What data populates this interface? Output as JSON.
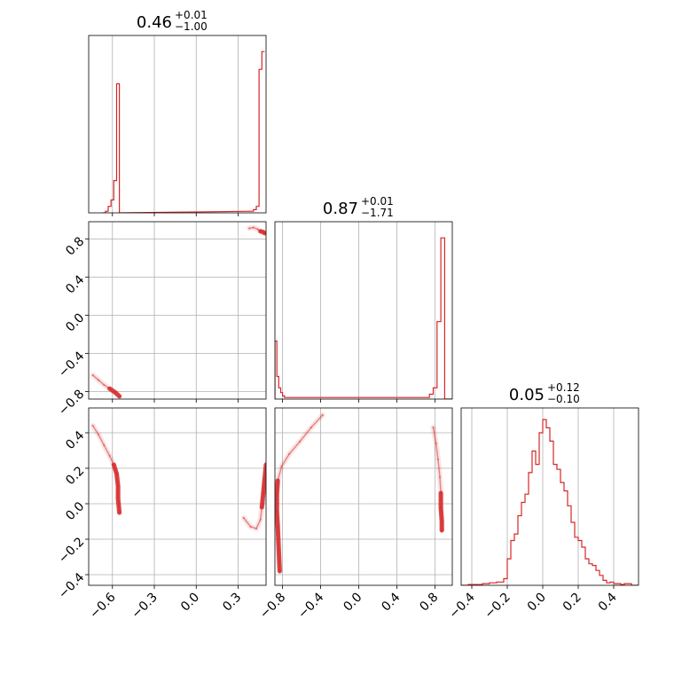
{
  "chart_data": {
    "type": "corner",
    "color": "#d62728",
    "parameters": [
      {
        "title": {
          "value": "0.46",
          "plus": "+0.01",
          "minus": "−1.00"
        },
        "range": [
          -0.77,
          0.5
        ]
      },
      {
        "title": {
          "value": "0.87",
          "plus": "+0.01",
          "minus": "−1.71"
        },
        "range": [
          -0.88,
          0.98
        ]
      },
      {
        "title": {
          "value": "0.05",
          "plus": "+0.12",
          "minus": "−0.10"
        },
        "range": [
          -0.46,
          0.54
        ]
      }
    ],
    "ticks": {
      "x0": [
        {
          "v": -0.6,
          "label": "−0.6"
        },
        {
          "v": -0.3,
          "label": "−0.3"
        },
        {
          "v": 0.0,
          "label": "0.0"
        },
        {
          "v": 0.3,
          "label": "0.3"
        }
      ],
      "x1": [
        {
          "v": -0.8,
          "label": "−0.8"
        },
        {
          "v": -0.4,
          "label": "−0.4"
        },
        {
          "v": 0.0,
          "label": "0.0"
        },
        {
          "v": 0.4,
          "label": "0.4"
        },
        {
          "v": 0.8,
          "label": "0.8"
        }
      ],
      "x2": [
        {
          "v": -0.4,
          "label": "−0.4"
        },
        {
          "v": -0.2,
          "label": "−0.2"
        },
        {
          "v": 0.0,
          "label": "0.0"
        },
        {
          "v": 0.2,
          "label": "0.2"
        },
        {
          "v": 0.4,
          "label": "0.4"
        }
      ],
      "y1": [
        {
          "v": 0.8,
          "label": "0.8"
        },
        {
          "v": 0.4,
          "label": "0.4"
        },
        {
          "v": 0.0,
          "label": "0.0"
        },
        {
          "v": -0.4,
          "label": "−0.4"
        },
        {
          "v": -0.8,
          "label": "−0.8"
        }
      ],
      "y2": [
        {
          "v": 0.4,
          "label": "0.4"
        },
        {
          "v": 0.2,
          "label": "0.2"
        },
        {
          "v": 0.0,
          "label": "0.0"
        },
        {
          "v": -0.2,
          "label": "−0.2"
        },
        {
          "v": -0.4,
          "label": "−0.4"
        }
      ]
    },
    "histograms": [
      {
        "param": 0,
        "bins": [
          [
            -0.67,
            -0.65,
            0
          ],
          [
            -0.65,
            -0.63,
            0.01
          ],
          [
            -0.63,
            -0.61,
            0.04
          ],
          [
            -0.61,
            -0.59,
            0.08
          ],
          [
            -0.59,
            -0.57,
            0.2
          ],
          [
            -0.57,
            -0.55,
            0.8
          ],
          [
            -0.55,
            -0.53,
            0
          ],
          [
            0.39,
            0.41,
            0.01
          ],
          [
            0.41,
            0.43,
            0.02
          ],
          [
            0.43,
            0.45,
            0.04
          ],
          [
            0.45,
            0.47,
            0.89
          ],
          [
            0.47,
            0.49,
            1.0
          ]
        ],
        "ymax": 1.1
      },
      {
        "param": 1,
        "bins": [
          [
            -0.88,
            -0.86,
            0.36
          ],
          [
            -0.86,
            -0.84,
            0.14
          ],
          [
            -0.84,
            -0.82,
            0.07
          ],
          [
            -0.82,
            -0.8,
            0.04
          ],
          [
            -0.8,
            -0.78,
            0.02
          ],
          [
            -0.78,
            -0.76,
            0.01
          ],
          [
            -0.76,
            -0.66,
            0.01
          ],
          [
            0.7,
            0.74,
            0.01
          ],
          [
            0.74,
            0.78,
            0.03
          ],
          [
            0.78,
            0.82,
            0.07
          ],
          [
            0.82,
            0.86,
            0.48
          ],
          [
            0.86,
            0.9,
            1.0
          ],
          [
            0.9,
            0.98,
            0.0
          ]
        ],
        "ymax": 1.1
      },
      {
        "param": 2,
        "bins": [
          [
            -0.46,
            -0.42,
            0.0
          ],
          [
            -0.42,
            -0.38,
            0.005
          ],
          [
            -0.38,
            -0.34,
            0.005
          ],
          [
            -0.34,
            -0.3,
            0.01
          ],
          [
            -0.3,
            -0.26,
            0.015
          ],
          [
            -0.26,
            -0.22,
            0.02
          ],
          [
            -0.22,
            -0.2,
            0.04
          ],
          [
            -0.2,
            -0.18,
            0.16
          ],
          [
            -0.18,
            -0.16,
            0.27
          ],
          [
            -0.16,
            -0.14,
            0.31
          ],
          [
            -0.14,
            -0.12,
            0.42
          ],
          [
            -0.12,
            -0.1,
            0.5
          ],
          [
            -0.1,
            -0.08,
            0.55
          ],
          [
            -0.08,
            -0.06,
            0.68
          ],
          [
            -0.06,
            -0.04,
            0.81
          ],
          [
            -0.04,
            -0.02,
            0.73
          ],
          [
            -0.02,
            0.0,
            0.92
          ],
          [
            0.0,
            0.02,
            1.0
          ],
          [
            0.02,
            0.04,
            0.95
          ],
          [
            0.04,
            0.06,
            0.87
          ],
          [
            0.06,
            0.08,
            0.73
          ],
          [
            0.08,
            0.1,
            0.7
          ],
          [
            0.1,
            0.12,
            0.62
          ],
          [
            0.12,
            0.14,
            0.57
          ],
          [
            0.14,
            0.16,
            0.48
          ],
          [
            0.16,
            0.18,
            0.38
          ],
          [
            0.18,
            0.2,
            0.29
          ],
          [
            0.2,
            0.22,
            0.27
          ],
          [
            0.22,
            0.24,
            0.23
          ],
          [
            0.24,
            0.26,
            0.16
          ],
          [
            0.26,
            0.28,
            0.13
          ],
          [
            0.28,
            0.3,
            0.12
          ],
          [
            0.3,
            0.32,
            0.09
          ],
          [
            0.32,
            0.34,
            0.06
          ],
          [
            0.34,
            0.36,
            0.03
          ],
          [
            0.36,
            0.38,
            0.015
          ],
          [
            0.38,
            0.4,
            0.02
          ],
          [
            0.4,
            0.42,
            0.01
          ],
          [
            0.42,
            0.44,
            0.01
          ],
          [
            0.44,
            0.46,
            0.005
          ],
          [
            0.46,
            0.5,
            0.01
          ],
          [
            0.5,
            0.54,
            0.0
          ]
        ],
        "ymax": 1.07
      }
    ],
    "scatter_panels": [
      {
        "xparam": 0,
        "yparam": 1,
        "clusters": [
          {
            "name": "upper-right",
            "points": [
              [
                0.38,
                0.91
              ],
              [
                0.41,
                0.92
              ],
              [
                0.44,
                0.9
              ],
              [
                0.46,
                0.88
              ],
              [
                0.48,
                0.87
              ],
              [
                0.49,
                0.86
              ]
            ]
          },
          {
            "name": "lower-left",
            "points": [
              [
                -0.74,
                -0.63
              ],
              [
                -0.7,
                -0.68
              ],
              [
                -0.66,
                -0.73
              ],
              [
                -0.62,
                -0.77
              ],
              [
                -0.58,
                -0.81
              ],
              [
                -0.55,
                -0.85
              ]
            ]
          }
        ]
      },
      {
        "xparam": 0,
        "yparam": 2,
        "clusters": [
          {
            "name": "left",
            "points": [
              [
                -0.74,
                0.44
              ],
              [
                -0.7,
                0.39
              ],
              [
                -0.66,
                0.33
              ],
              [
                -0.62,
                0.27
              ],
              [
                -0.59,
                0.22
              ],
              [
                -0.57,
                0.17
              ],
              [
                -0.56,
                0.1
              ],
              [
                -0.56,
                0.03
              ],
              [
                -0.55,
                -0.05
              ]
            ]
          },
          {
            "name": "right",
            "points": [
              [
                0.34,
                -0.08
              ],
              [
                0.39,
                -0.13
              ],
              [
                0.43,
                -0.14
              ],
              [
                0.46,
                -0.09
              ],
              [
                0.47,
                -0.02
              ],
              [
                0.48,
                0.06
              ],
              [
                0.49,
                0.14
              ],
              [
                0.5,
                0.22
              ]
            ]
          }
        ]
      },
      {
        "xparam": 1,
        "yparam": 2,
        "clusters": [
          {
            "name": "left",
            "points": [
              [
                -0.38,
                0.5
              ],
              [
                -0.5,
                0.43
              ],
              [
                -0.62,
                0.35
              ],
              [
                -0.73,
                0.28
              ],
              [
                -0.81,
                0.21
              ],
              [
                -0.85,
                0.13
              ],
              [
                -0.86,
                0.05
              ],
              [
                -0.86,
                -0.04
              ],
              [
                -0.85,
                -0.13
              ],
              [
                -0.84,
                -0.26
              ],
              [
                -0.83,
                -0.38
              ]
            ]
          },
          {
            "name": "right",
            "points": [
              [
                0.78,
                0.43
              ],
              [
                0.81,
                0.34
              ],
              [
                0.83,
                0.25
              ],
              [
                0.85,
                0.15
              ],
              [
                0.86,
                0.06
              ],
              [
                0.86,
                -0.02
              ],
              [
                0.87,
                -0.1
              ],
              [
                0.87,
                -0.15
              ]
            ]
          }
        ]
      }
    ]
  }
}
